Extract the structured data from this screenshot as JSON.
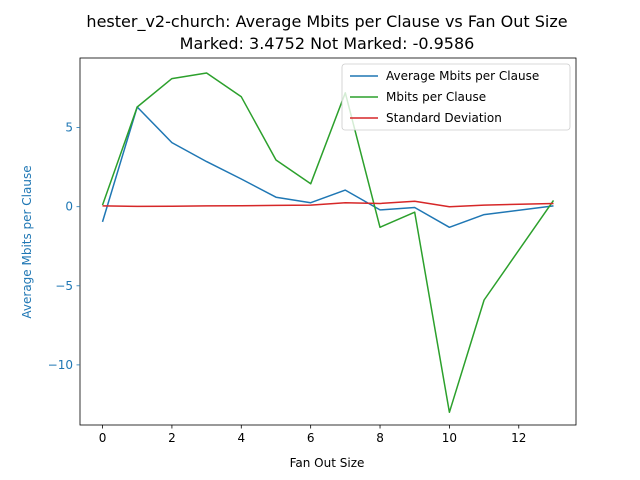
{
  "chart_data": {
    "type": "line",
    "title": "hester_v2-church: Average Mbits per Clause vs Fan Out Size",
    "subtitle": "Marked: 3.4752 Not Marked: -0.9586",
    "xlabel": "Fan Out Size",
    "ylabel": "Average Mbits per Clause",
    "xlim": [
      -0.65,
      13.65
    ],
    "ylim": [
      -13.8,
      9.4
    ],
    "xticks": [
      0,
      2,
      4,
      6,
      8,
      10,
      12
    ],
    "xtick_labels": [
      "0",
      "2",
      "4",
      "6",
      "8",
      "10",
      "12"
    ],
    "yticks": [
      5,
      0,
      -5,
      -10
    ],
    "ytick_labels": [
      "5",
      "0",
      "−5",
      "−10"
    ],
    "grid": false,
    "legend_position": "top-right",
    "series": [
      {
        "name": "Average Mbits per Clause",
        "color": "#1f77b4",
        "x": [
          0,
          1,
          2,
          3,
          4,
          5,
          6,
          7,
          8,
          9,
          10,
          11,
          13
        ],
        "y": [
          -0.96,
          6.3,
          4.05,
          2.85,
          1.75,
          0.6,
          0.25,
          1.05,
          -0.2,
          -0.05,
          -1.3,
          -0.5,
          0.05
        ]
      },
      {
        "name": "Mbits per Clause",
        "color": "#2ca02c",
        "x": [
          0,
          1,
          2,
          3,
          4,
          5,
          6,
          7,
          8,
          9,
          10,
          11,
          13
        ],
        "y": [
          0.1,
          6.3,
          8.1,
          8.45,
          6.95,
          2.95,
          1.45,
          7.2,
          -1.3,
          -0.35,
          -13.0,
          -5.9,
          0.4
        ]
      },
      {
        "name": "Standard Deviation",
        "color": "#d62728",
        "x": [
          0,
          1,
          2,
          3,
          4,
          5,
          6,
          7,
          8,
          9,
          10,
          11,
          13
        ],
        "y": [
          0.05,
          0.02,
          0.03,
          0.05,
          0.06,
          0.08,
          0.1,
          0.25,
          0.2,
          0.35,
          0.0,
          0.1,
          0.2
        ]
      }
    ]
  }
}
